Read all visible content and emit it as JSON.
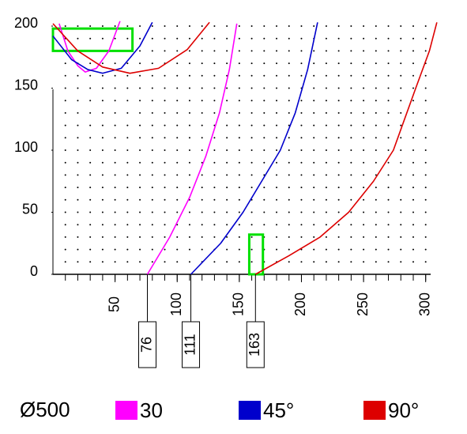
{
  "chart_data": {
    "type": "line",
    "legend_title": "Ø500",
    "xlim": [
      0,
      304
    ],
    "ylim": [
      0,
      200
    ],
    "xticks": [
      50,
      100,
      150,
      200,
      250,
      300
    ],
    "yticks": [
      0,
      50,
      100,
      150,
      200
    ],
    "grid": true,
    "series": [
      {
        "name": "30",
        "color": "#ff00ff",
        "curve": {
          "x": [
            76,
            94,
            110,
            123,
            134,
            142,
            148
          ],
          "y": [
            0,
            30,
            62,
            95,
            130,
            165,
            202
          ]
        },
        "top": {
          "x": [
            5,
            12,
            20,
            26,
            35,
            45,
            54
          ],
          "y": [
            202,
            180,
            168,
            163,
            166,
            180,
            204
          ]
        }
      },
      {
        "name": "45°",
        "color": "#0000cc",
        "curve": {
          "x": [
            111,
            135,
            153,
            168,
            183,
            195,
            205,
            213
          ],
          "y": [
            0,
            25,
            50,
            75,
            100,
            130,
            165,
            203
          ]
        },
        "top": {
          "x": [
            0,
            15,
            28,
            40,
            55,
            70,
            80
          ],
          "y": [
            192,
            173,
            165,
            162,
            166,
            184,
            203
          ]
        }
      },
      {
        "name": "90°",
        "color": "#dd0000",
        "curve": {
          "x": [
            163,
            190,
            215,
            238,
            258,
            274,
            292,
            303,
            309
          ],
          "y": [
            0,
            15,
            30,
            50,
            75,
            100,
            150,
            180,
            203
          ]
        },
        "top": {
          "x": [
            0,
            20,
            40,
            62,
            85,
            108,
            126
          ],
          "y": [
            202,
            180,
            167,
            162,
            166,
            181,
            203
          ]
        }
      }
    ],
    "markers": [
      76,
      111,
      163
    ],
    "highlights": [
      {
        "x": [
          0,
          64
        ],
        "y": [
          180,
          198
        ]
      },
      {
        "x": [
          158,
          169
        ],
        "y": [
          0,
          32
        ]
      }
    ],
    "highlight_color": "#00e000"
  }
}
